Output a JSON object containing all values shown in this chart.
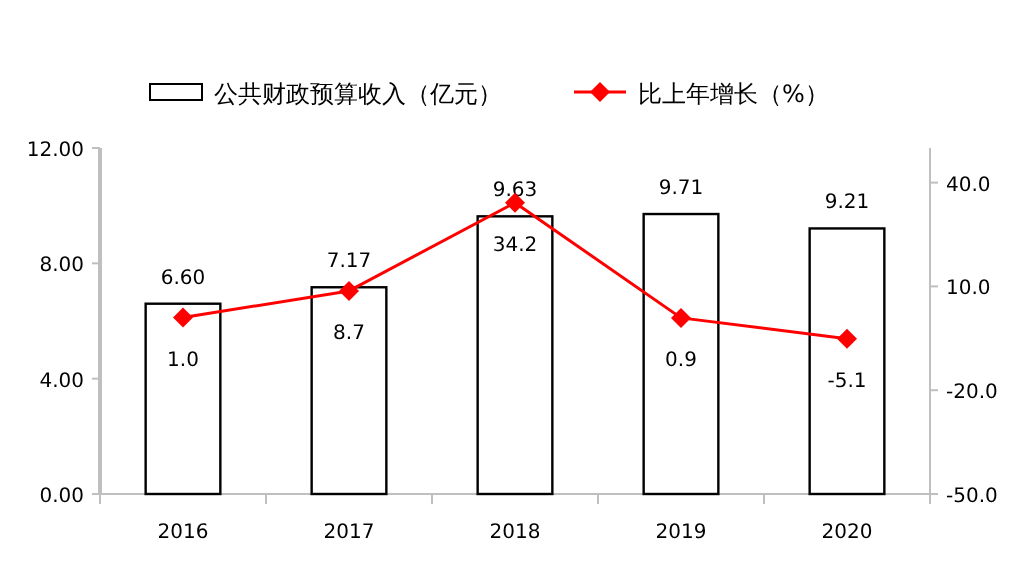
{
  "chart_data": {
    "type": "bar",
    "categories": [
      "2016",
      "2017",
      "2018",
      "2019",
      "2020"
    ],
    "series": [
      {
        "name": "公共财政预算收入（亿元）",
        "color": "#ffffff",
        "values": [
          6.6,
          7.17,
          9.63,
          9.71,
          9.21
        ],
        "value_labels": [
          "6.60",
          "7.17",
          "9.63",
          "9.71",
          "9.21"
        ]
      },
      {
        "name": "比上年增长（%）",
        "type": "line",
        "axis": "y2",
        "color": "#ff0000",
        "marker": "diamond",
        "value_labels": [
          "1.0",
          "8.7",
          "34.2",
          "0.9",
          "-5.1"
        ],
        "values": [
          1.0,
          8.7,
          34.2,
          0.9,
          -5.1
        ]
      }
    ],
    "ylim": [
      0,
      12
    ],
    "yticks": [
      {
        "value": 0,
        "label": "0.00"
      },
      {
        "value": 4,
        "label": "4.00"
      },
      {
        "value": 8,
        "label": "8.00"
      },
      {
        "value": 12,
        "label": "12.00"
      }
    ],
    "y2lim": [
      -50,
      50
    ],
    "y2ticks": [
      {
        "value": -50,
        "label": "-50.0"
      },
      {
        "value": -20,
        "label": "-20.0"
      },
      {
        "value": 10,
        "label": "10.0"
      },
      {
        "value": 40,
        "label": "40.0"
      }
    ],
    "grid": false,
    "legend": "top"
  }
}
